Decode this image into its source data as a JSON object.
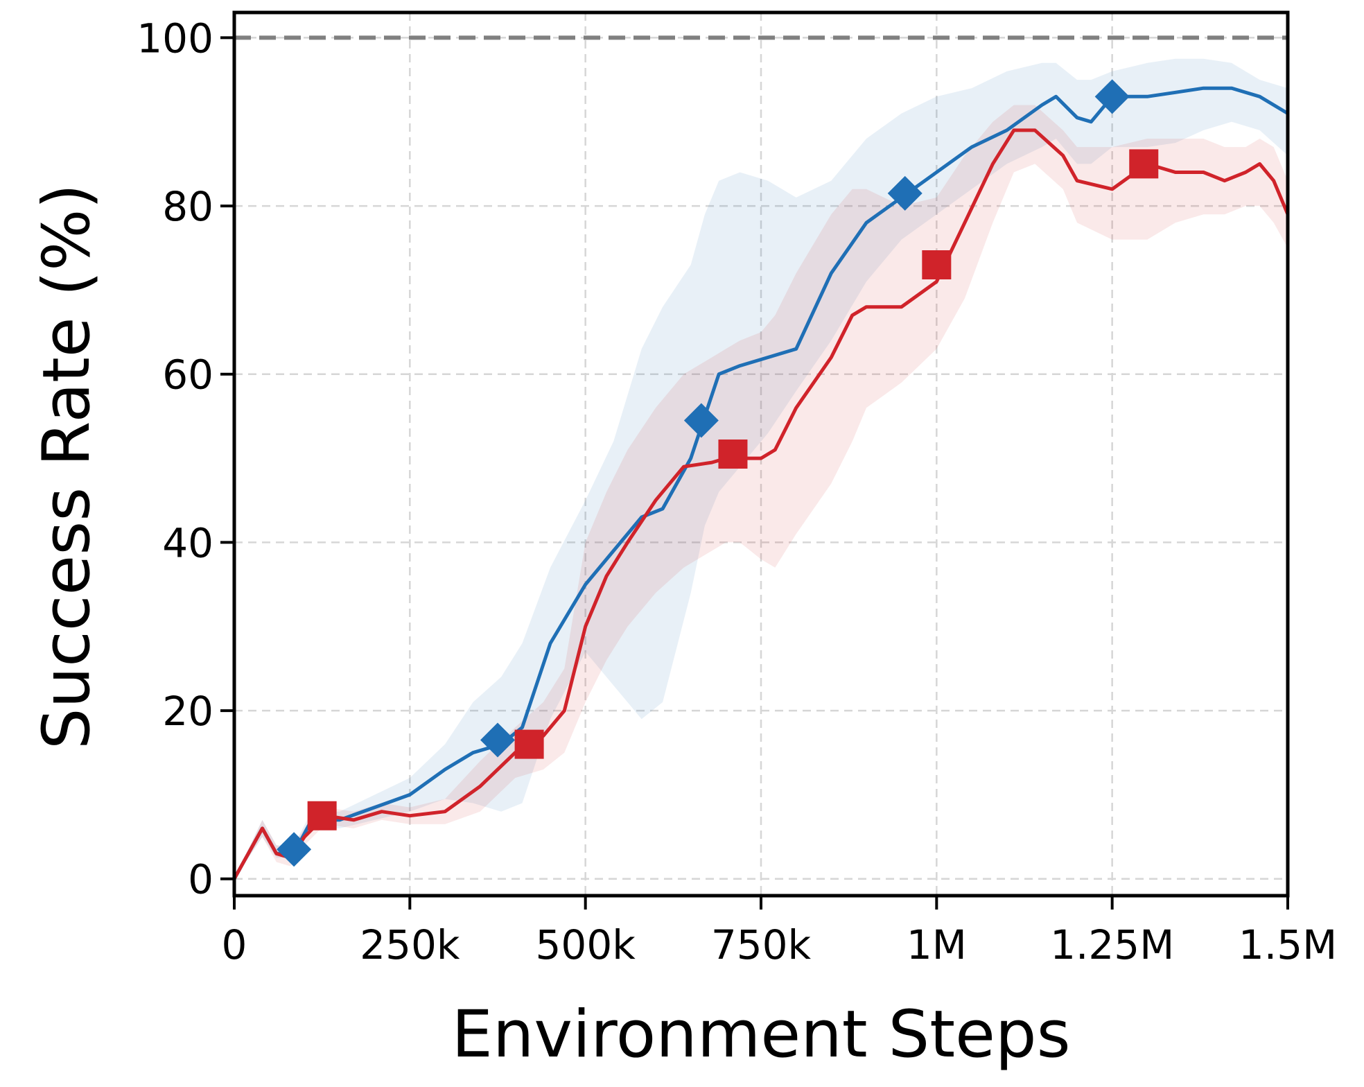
{
  "chart_data": {
    "type": "line",
    "xlabel": "Environment Steps",
    "ylabel": "Success Rate (%)",
    "xlim": [
      0,
      1500000
    ],
    "ylim": [
      -2,
      103
    ],
    "grid": true,
    "reference_line": {
      "y": 100,
      "color": "#808080",
      "style": "dashed"
    },
    "xticks": [
      {
        "value": 0,
        "label": "0"
      },
      {
        "value": 250000,
        "label": "250k"
      },
      {
        "value": 500000,
        "label": "500k"
      },
      {
        "value": 750000,
        "label": "750k"
      },
      {
        "value": 1000000,
        "label": "1M"
      },
      {
        "value": 1250000,
        "label": "1.25M"
      },
      {
        "value": 1500000,
        "label": "1.5M"
      }
    ],
    "yticks": [
      {
        "value": 0,
        "label": "0"
      },
      {
        "value": 20,
        "label": "20"
      },
      {
        "value": 40,
        "label": "40"
      },
      {
        "value": 60,
        "label": "60"
      },
      {
        "value": 80,
        "label": "80"
      },
      {
        "value": 100,
        "label": "100"
      }
    ],
    "series": [
      {
        "color": "#1f6fb5",
        "marker": "diamond",
        "x": [
          0,
          40000,
          60000,
          85000,
          110000,
          150000,
          200000,
          250000,
          300000,
          340000,
          380000,
          410000,
          450000,
          500000,
          540000,
          580000,
          610000,
          650000,
          670000,
          690000,
          720000,
          760000,
          800000,
          850000,
          900000,
          950000,
          1000000,
          1050000,
          1100000,
          1150000,
          1170000,
          1200000,
          1220000,
          1250000,
          1300000,
          1340000,
          1380000,
          1420000,
          1460000,
          1500000
        ],
        "y": [
          0,
          6,
          3,
          3,
          7,
          7,
          8.5,
          10,
          13,
          15,
          16,
          18,
          28,
          35,
          39,
          43,
          44,
          50,
          55,
          60,
          61,
          62,
          63,
          72,
          78,
          81,
          84,
          87,
          89,
          92,
          93,
          90.5,
          90,
          93,
          93,
          93.5,
          94,
          94,
          93,
          91
        ],
        "lower": [
          0,
          5,
          2.5,
          2.5,
          6,
          6,
          7,
          8,
          9.5,
          9,
          8,
          9,
          19,
          27,
          23,
          19,
          21,
          34,
          42,
          46,
          49,
          53,
          58,
          64,
          71,
          76,
          79,
          82,
          85,
          87,
          88,
          85,
          85,
          87,
          87,
          87.5,
          89,
          90,
          89,
          86
        ],
        "upper": [
          0,
          7,
          4,
          4,
          8,
          8,
          10,
          12,
          16,
          21,
          24,
          28,
          37,
          45,
          52,
          63,
          68,
          73,
          79,
          83,
          84,
          83,
          81,
          83,
          88,
          91,
          93,
          94,
          96,
          97,
          97,
          95,
          95,
          96,
          97,
          97.5,
          97.5,
          97,
          95,
          94
        ]
      },
      {
        "color": "#d0232a",
        "marker": "square",
        "x": [
          0,
          40000,
          60000,
          80000,
          100000,
          130000,
          170000,
          210000,
          250000,
          300000,
          350000,
          400000,
          440000,
          470000,
          500000,
          530000,
          560000,
          600000,
          640000,
          680000,
          700000,
          720000,
          750000,
          770000,
          800000,
          850000,
          880000,
          900000,
          950000,
          1000000,
          1040000,
          1080000,
          1110000,
          1140000,
          1180000,
          1200000,
          1250000,
          1300000,
          1340000,
          1380000,
          1410000,
          1440000,
          1460000,
          1480000,
          1500000
        ],
        "y": [
          0,
          6,
          3,
          2.5,
          5,
          7.5,
          7,
          8,
          7.5,
          8,
          11,
          15,
          17,
          20,
          30,
          36,
          40,
          45,
          49,
          49.5,
          50,
          50,
          50,
          51,
          56,
          62,
          67,
          68,
          68,
          71,
          78,
          85,
          89,
          89,
          86,
          83,
          82,
          85,
          84,
          84,
          83,
          84,
          85,
          83,
          79
        ],
        "lower": [
          0,
          5,
          2,
          1.5,
          4,
          6.5,
          6,
          7,
          6.5,
          6.5,
          8,
          12,
          13,
          15,
          21,
          26,
          30,
          34,
          37,
          39,
          40,
          40,
          38,
          37,
          41,
          47,
          52,
          56,
          59,
          63,
          69,
          78,
          84,
          85,
          82,
          78,
          76,
          76,
          78,
          79,
          79,
          80,
          80,
          78,
          75
        ],
        "upper": [
          0,
          7,
          4,
          3.5,
          6,
          8.5,
          8,
          9,
          8.5,
          9.5,
          14,
          18,
          21,
          25,
          40,
          46,
          51,
          56,
          60,
          62,
          63,
          64,
          65,
          67,
          72,
          79,
          82,
          82,
          80,
          81,
          86,
          90,
          92,
          92,
          89,
          87,
          87,
          88,
          88,
          88,
          87,
          87,
          88,
          87,
          83
        ]
      }
    ],
    "markers": [
      {
        "series": 0,
        "points": [
          [
            85000,
            3.5
          ],
          [
            375000,
            16.5
          ],
          [
            665000,
            54.5
          ],
          [
            955000,
            81.5
          ],
          [
            1250000,
            93
          ]
        ]
      },
      {
        "series": 1,
        "points": [
          [
            125000,
            7.5
          ],
          [
            420000,
            16
          ],
          [
            710000,
            50.5
          ],
          [
            1000000,
            73
          ],
          [
            1295000,
            85
          ]
        ]
      }
    ]
  }
}
